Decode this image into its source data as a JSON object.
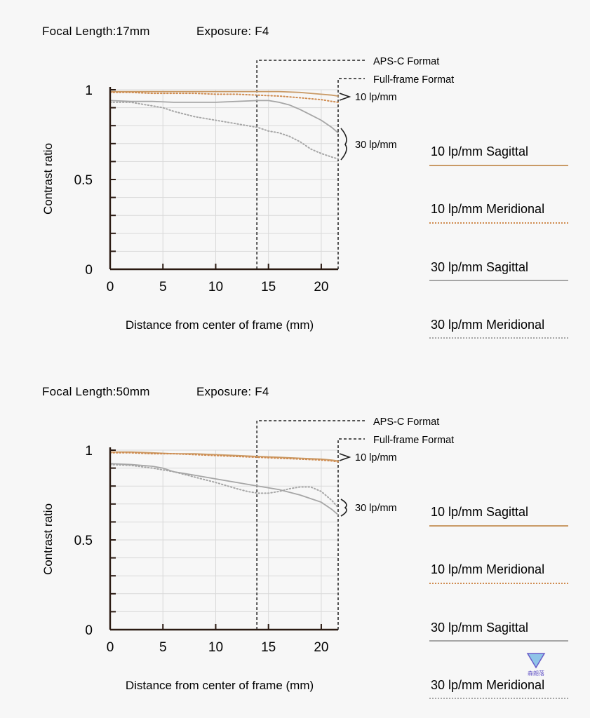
{
  "colors": {
    "sagittal_10": "#c99a66",
    "meridional_10": "#cf8b4f",
    "sagittal_30": "#a6a6a6",
    "meridional_30": "#a6a6a6",
    "axis": "#2a1a12",
    "grid": "#d9d9d9",
    "dashed_marker": "#1e1e1e",
    "watermark": "#6a5cc8"
  },
  "watermark": {
    "text": "森朗落"
  },
  "panels": [
    {
      "header": {
        "focal_label": "Focal Length:17mm",
        "exposure_label": "Exposure: F4"
      },
      "annotations": {
        "apsc": "APS-C Format",
        "fullframe": "Full-frame Format",
        "lp10": "10 lp/mm",
        "lp30": "30 lp/mm"
      },
      "legend": [
        {
          "label": "10 lp/mm Sagittal",
          "style": "solid",
          "color": "#c99a66"
        },
        {
          "label": "10 lp/mm Meridional",
          "style": "dotted",
          "color": "#cf8b4f"
        },
        {
          "label": "30 lp/mm Sagittal",
          "style": "solid",
          "color": "#a6a6a6"
        },
        {
          "label": "30 lp/mm Meridional",
          "style": "dotted",
          "color": "#a6a6a6"
        }
      ],
      "chart_data": {
        "type": "line",
        "ylabel": "Contrast ratio",
        "xlabel": "Distance from center of frame (mm)",
        "xlim": [
          0,
          21.6
        ],
        "ylim": [
          0,
          1
        ],
        "x_ticks": [
          0,
          5,
          10,
          15,
          20
        ],
        "y_ticks": [
          0,
          0.5,
          1
        ],
        "y_tick_labels": [
          "0",
          "0.5",
          "1"
        ],
        "grid": true,
        "markers": {
          "apsc_x": 13.9,
          "fullframe_x": 21.6
        },
        "series": [
          {
            "name": "10 lp/mm Sagittal",
            "style": "solid",
            "color": "#c99a66",
            "x": [
              0,
              2,
              4,
              6,
              8,
              10,
              12,
              14,
              16,
              18,
              19,
              20,
              21,
              21.6
            ],
            "y": [
              0.99,
              0.99,
              0.99,
              0.99,
              0.99,
              0.99,
              0.99,
              0.99,
              0.99,
              0.985,
              0.98,
              0.975,
              0.97,
              0.965
            ]
          },
          {
            "name": "10 lp/mm Meridional",
            "style": "dotted",
            "color": "#cf8b4f",
            "x": [
              0,
              2,
              4,
              6,
              8,
              10,
              12,
              14,
              16,
              18,
              20,
              21,
              21.6
            ],
            "y": [
              0.985,
              0.985,
              0.98,
              0.98,
              0.98,
              0.975,
              0.975,
              0.97,
              0.965,
              0.955,
              0.945,
              0.935,
              0.93
            ]
          },
          {
            "name": "30 lp/mm Sagittal",
            "style": "solid",
            "color": "#a6a6a6",
            "x": [
              0,
              2,
              4,
              6,
              8,
              10,
              12,
              14,
              15,
              16,
              17,
              18,
              19,
              20,
              21,
              21.6
            ],
            "y": [
              0.94,
              0.935,
              0.935,
              0.93,
              0.93,
              0.93,
              0.935,
              0.94,
              0.94,
              0.93,
              0.915,
              0.89,
              0.86,
              0.83,
              0.79,
              0.76
            ]
          },
          {
            "name": "30 lp/mm Meridional",
            "style": "dotted",
            "color": "#a6a6a6",
            "x": [
              0,
              2,
              3,
              4,
              5,
              6,
              8,
              10,
              12,
              14,
              15,
              16,
              17,
              18,
              19,
              20,
              21,
              21.6
            ],
            "y": [
              0.93,
              0.93,
              0.92,
              0.91,
              0.9,
              0.88,
              0.85,
              0.83,
              0.81,
              0.79,
              0.77,
              0.76,
              0.74,
              0.71,
              0.67,
              0.645,
              0.625,
              0.615
            ]
          }
        ]
      }
    },
    {
      "header": {
        "focal_label": "Focal Length:50mm",
        "exposure_label": "Exposure: F4"
      },
      "annotations": {
        "apsc": "APS-C Format",
        "fullframe": "Full-frame Format",
        "lp10": "10 lp/mm",
        "lp30": "30 lp/mm"
      },
      "legend": [
        {
          "label": "10 lp/mm Sagittal",
          "style": "solid",
          "color": "#c99a66"
        },
        {
          "label": "10 lp/mm Meridional",
          "style": "dotted",
          "color": "#cf8b4f"
        },
        {
          "label": "30 lp/mm Sagittal",
          "style": "solid",
          "color": "#a6a6a6"
        },
        {
          "label": "30 lp/mm Meridional",
          "style": "dotted",
          "color": "#a6a6a6"
        }
      ],
      "chart_data": {
        "type": "line",
        "ylabel": "Contrast ratio",
        "xlabel": "Distance from center of frame (mm)",
        "xlim": [
          0,
          21.6
        ],
        "ylim": [
          0,
          1
        ],
        "x_ticks": [
          0,
          5,
          10,
          15,
          20
        ],
        "y_ticks": [
          0,
          0.5,
          1
        ],
        "y_tick_labels": [
          "0",
          "0.5",
          "1"
        ],
        "grid": true,
        "markers": {
          "apsc_x": 13.9,
          "fullframe_x": 21.6
        },
        "series": [
          {
            "name": "10 lp/mm Sagittal",
            "style": "solid",
            "color": "#c99a66",
            "x": [
              0,
              2,
              4,
              6,
              8,
              10,
              12,
              14,
              16,
              18,
              20,
              21,
              21.6
            ],
            "y": [
              0.99,
              0.99,
              0.985,
              0.98,
              0.98,
              0.975,
              0.97,
              0.965,
              0.96,
              0.955,
              0.95,
              0.945,
              0.94
            ]
          },
          {
            "name": "10 lp/mm Meridional",
            "style": "dotted",
            "color": "#cf8b4f",
            "x": [
              0,
              2,
              4,
              6,
              8,
              10,
              12,
              14,
              16,
              18,
              20,
              21,
              21.6
            ],
            "y": [
              0.985,
              0.985,
              0.98,
              0.98,
              0.975,
              0.97,
              0.965,
              0.96,
              0.955,
              0.95,
              0.945,
              0.94,
              0.935
            ]
          },
          {
            "name": "30 lp/mm Sagittal",
            "style": "solid",
            "color": "#a6a6a6",
            "x": [
              0,
              2,
              4,
              5,
              6,
              8,
              10,
              12,
              14,
              16,
              18,
              19,
              20,
              21,
              21.6
            ],
            "y": [
              0.925,
              0.92,
              0.91,
              0.9,
              0.88,
              0.86,
              0.84,
              0.82,
              0.8,
              0.78,
              0.75,
              0.73,
              0.71,
              0.67,
              0.64
            ]
          },
          {
            "name": "30 lp/mm Meridional",
            "style": "dotted",
            "color": "#a6a6a6",
            "x": [
              0,
              2,
              4,
              6,
              8,
              10,
              12,
              13,
              14,
              15,
              16,
              17,
              18,
              19,
              20,
              21,
              21.6
            ],
            "y": [
              0.92,
              0.915,
              0.9,
              0.88,
              0.85,
              0.82,
              0.785,
              0.77,
              0.76,
              0.76,
              0.77,
              0.785,
              0.795,
              0.795,
              0.77,
              0.72,
              0.68
            ]
          }
        ]
      }
    }
  ]
}
